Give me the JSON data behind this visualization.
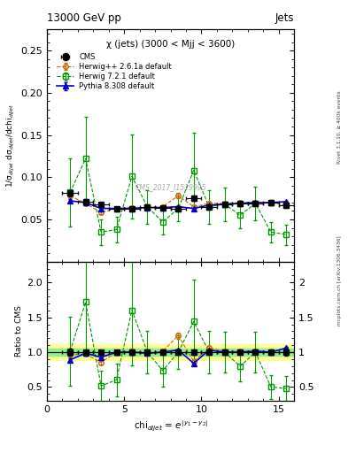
{
  "title_top": "13000 GeV pp",
  "title_right": "Jets",
  "subtitle": "χ (jets) (3000 < Mjj < 3600)",
  "watermark": "CMS_2017_I1519995",
  "rivet_label": "Rivet 3.1.10, ≥ 400k events",
  "arxiv_label": "mcplots.cern.ch [arXiv:1306.3436]",
  "ylabel_main": "1/σ$_{dijet}$ dσ$_{dijet}$/dchi$_{dijet}$",
  "ylabel_ratio": "Ratio to CMS",
  "xlabel": "chi$_{dijet}$ = e$^{|y_{-}1-y_{-}2|}$",
  "xlim": [
    0,
    16
  ],
  "ylim_main": [
    0.0,
    0.275
  ],
  "ylim_ratio": [
    0.3,
    2.3
  ],
  "yticks_main": [
    0.05,
    0.1,
    0.15,
    0.2,
    0.25
  ],
  "yticks_ratio": [
    0.5,
    1.0,
    1.5,
    2.0
  ],
  "xticks": [
    0,
    5,
    10,
    15
  ],
  "cms_x": [
    1.5,
    2.5,
    3.5,
    4.5,
    5.5,
    6.5,
    7.5,
    8.5,
    9.5,
    10.5,
    11.5,
    12.5,
    13.5,
    14.5,
    15.5
  ],
  "cms_y": [
    0.081,
    0.071,
    0.068,
    0.063,
    0.063,
    0.065,
    0.064,
    0.063,
    0.075,
    0.065,
    0.068,
    0.069,
    0.069,
    0.07,
    0.067
  ],
  "cms_yerr": [
    0.004,
    0.003,
    0.002,
    0.002,
    0.002,
    0.002,
    0.002,
    0.002,
    0.003,
    0.002,
    0.002,
    0.002,
    0.002,
    0.003,
    0.003
  ],
  "herwig_x": [
    1.5,
    2.5,
    3.5,
    4.5,
    5.5,
    6.5,
    7.5,
    8.5,
    9.5,
    10.5,
    11.5,
    12.5,
    13.5,
    14.5,
    15.5
  ],
  "herwig_y": [
    0.078,
    0.069,
    0.058,
    0.063,
    0.064,
    0.064,
    0.065,
    0.078,
    0.065,
    0.069,
    0.069,
    0.07,
    0.07,
    0.07,
    0.067
  ],
  "herwig_yerr": [
    0.003,
    0.002,
    0.002,
    0.002,
    0.002,
    0.002,
    0.002,
    0.003,
    0.002,
    0.002,
    0.002,
    0.002,
    0.002,
    0.002,
    0.002
  ],
  "herwig72_x": [
    1.5,
    2.5,
    3.5,
    4.5,
    5.5,
    6.5,
    7.5,
    8.5,
    9.5,
    10.5,
    11.5,
    12.5,
    13.5,
    14.5,
    15.5
  ],
  "herwig72_y": [
    0.082,
    0.122,
    0.035,
    0.038,
    0.101,
    0.065,
    0.047,
    0.063,
    0.108,
    0.065,
    0.068,
    0.055,
    0.069,
    0.035,
    0.032
  ],
  "herwig72_yerr": [
    0.04,
    0.05,
    0.015,
    0.015,
    0.05,
    0.02,
    0.015,
    0.015,
    0.045,
    0.02,
    0.02,
    0.015,
    0.02,
    0.012,
    0.012
  ],
  "pythia_x": [
    1.5,
    2.5,
    3.5,
    4.5,
    5.5,
    6.5,
    7.5,
    8.5,
    9.5,
    10.5,
    11.5,
    12.5,
    13.5,
    14.5,
    15.5
  ],
  "pythia_y": [
    0.072,
    0.07,
    0.063,
    0.063,
    0.063,
    0.064,
    0.064,
    0.065,
    0.063,
    0.067,
    0.068,
    0.069,
    0.07,
    0.07,
    0.071
  ],
  "pythia_yerr": [
    0.002,
    0.001,
    0.001,
    0.001,
    0.001,
    0.001,
    0.001,
    0.001,
    0.001,
    0.001,
    0.001,
    0.001,
    0.001,
    0.001,
    0.001
  ],
  "cms_color": "#000000",
  "herwig_color": "#cc6600",
  "herwig72_color": "#009900",
  "pythia_color": "#0000cc",
  "band_green": "#90EE90",
  "band_yellow": "#FFFF99",
  "band_green_range": [
    0.95,
    1.05
  ],
  "band_yellow_range": [
    0.88,
    1.12
  ]
}
